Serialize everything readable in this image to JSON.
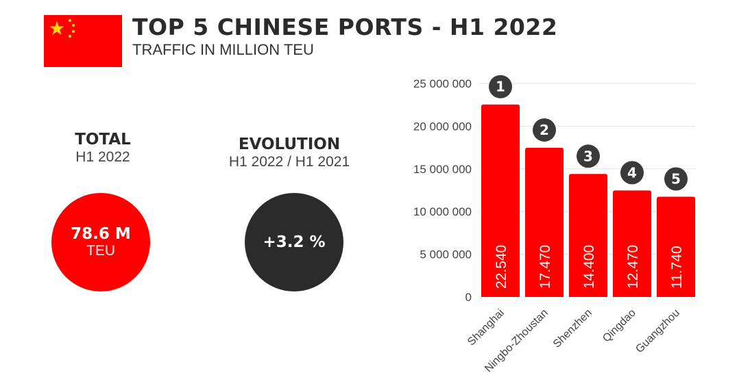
{
  "header": {
    "title": "TOP 5 CHINESE PORTS - H1 2022",
    "subtitle": "TRAFFIC IN MILLION TEU",
    "flag_icon": "china-flag-icon"
  },
  "kpis": {
    "total": {
      "label": "TOTAL",
      "period": "H1 2022",
      "value": "78.6 M",
      "unit": "TEU",
      "color": "#ff0000"
    },
    "evolution": {
      "label": "EVOLUTION",
      "period": "H1 2022 / H1 2021",
      "value": "+3.2 %",
      "color": "#2b2b2b"
    }
  },
  "chart_data": {
    "type": "bar",
    "categories": [
      "Shanghai",
      "Ningbo-Zhoustan",
      "Shenzhen",
      "Qingdao",
      "Guangzhou"
    ],
    "values": [
      22540000,
      17470000,
      14400000,
      12470000,
      11740000
    ],
    "data_labels": [
      "22.540",
      "17.470",
      "14.400",
      "12.470",
      "11.740"
    ],
    "rank_labels": [
      "1",
      "2",
      "3",
      "4",
      "5"
    ],
    "yticks": [
      0,
      5000000,
      10000000,
      15000000,
      20000000,
      25000000
    ],
    "ytick_labels": [
      "0",
      "5 000 000",
      "10 000 000",
      "15 000 000",
      "20 000 000",
      "25 000 000"
    ],
    "ylim": [
      0,
      25000000
    ],
    "grid": true,
    "bar_color": "#ff0000",
    "rank_badge_color": "#3a3a3a"
  }
}
